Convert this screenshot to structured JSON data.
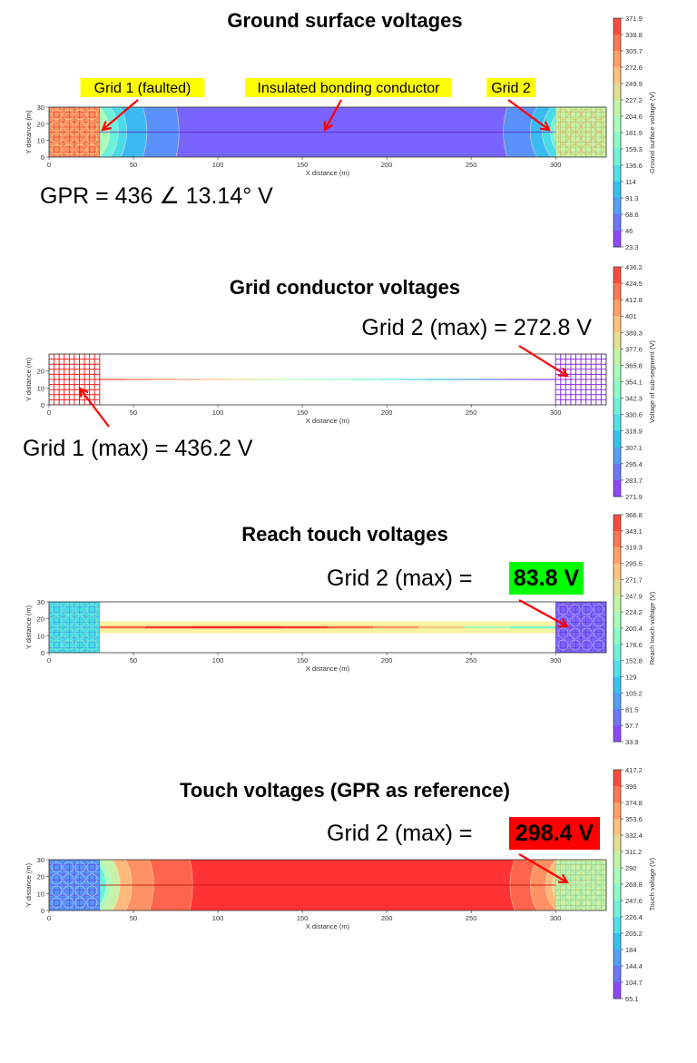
{
  "colors": {
    "arrow": "#ff0000",
    "highlight_yellow": "#ffff00",
    "highlight_green": "#00ff00",
    "highlight_red": "#ff0000"
  },
  "chart_data": [
    {
      "type": "heatmap",
      "title": "Ground surface voltages",
      "xlabel": "X distance (m)",
      "ylabel": "Y distance (m)",
      "xlim": [
        0,
        330
      ],
      "ylim": [
        0,
        30
      ],
      "xticks": [
        "0",
        "50",
        "100",
        "150",
        "200",
        "250",
        "300"
      ],
      "yticks": [
        "0",
        "10",
        "20",
        "30"
      ],
      "colormap": "rainbow",
      "colorbar_label": "Ground surface voltage (V)",
      "colorbar_ticks": [
        "371.9",
        "338.8",
        "305.7",
        "272.6",
        "249.9",
        "227.2",
        "204.6",
        "181.9",
        "159.3",
        "136.6",
        "114",
        "91.3",
        "68.6",
        "46",
        "23.3"
      ],
      "regions": {
        "grid1_level": 315,
        "grid2_level": 200,
        "conductor_level": 30
      },
      "annotations": {
        "grid1_label": "Grid 1 (faulted)",
        "conductor_label": "Insulated bonding conductor",
        "grid2_label": "Grid 2",
        "gpr": "GPR = 436 ∠ 13.14° V"
      }
    },
    {
      "type": "heatmap",
      "title": "Grid conductor voltages",
      "xlabel": "X distance (m)",
      "ylabel": "Y distance (m)",
      "xlim": [
        0,
        330
      ],
      "ylim": [
        0,
        30
      ],
      "xticks": [
        "0",
        "50",
        "100",
        "150",
        "200",
        "250",
        "300"
      ],
      "yticks": [
        "0",
        "10",
        "20"
      ],
      "colormap": "rainbow",
      "colorbar_label": "Voltage of sub-segment (V)",
      "colorbar_ticks": [
        "436.2",
        "424.5",
        "412.8",
        "401",
        "389.3",
        "377.6",
        "365.8",
        "354.1",
        "342.3",
        "330.6",
        "318.9",
        "307.1",
        "295.4",
        "283.7",
        "271.9"
      ],
      "annotations": {
        "grid2_max": "Grid 2 (max)  = 272.8 V",
        "grid1_max": "Grid 1 (max)  = 436.2 V"
      }
    },
    {
      "type": "heatmap",
      "title": "Reach touch voltages",
      "xlabel": "X distance (m)",
      "ylabel": "Y distance (m)",
      "xlim": [
        0,
        330
      ],
      "ylim": [
        0,
        30
      ],
      "xticks": [
        "0",
        "50",
        "100",
        "150",
        "200",
        "250",
        "300"
      ],
      "yticks": [
        "0",
        "10",
        "20",
        "30"
      ],
      "colormap": "rainbow",
      "colorbar_label": "Reach touch voltage (V)",
      "colorbar_ticks": [
        "366.8",
        "343.1",
        "319.3",
        "295.5",
        "271.7",
        "247.9",
        "224.2",
        "200.4",
        "176.6",
        "152.8",
        "129",
        "105.2",
        "81.5",
        "57.7",
        "33.9"
      ],
      "annotations": {
        "grid2_prefix": "Grid 2 (max)  = ",
        "grid2_value": "83.8 V"
      }
    },
    {
      "type": "heatmap",
      "title": "Touch voltages (GPR as reference)",
      "xlabel": "X distance (m)",
      "ylabel": "Y distance (m)",
      "xlim": [
        0,
        330
      ],
      "ylim": [
        0,
        30
      ],
      "xticks": [
        "0",
        "50",
        "100",
        "150",
        "200",
        "250",
        "300"
      ],
      "yticks": [
        "0",
        "10",
        "20",
        "30"
      ],
      "colormap": "rainbow",
      "colorbar_label": "Touch voltage (V)",
      "colorbar_ticks": [
        "417.2",
        "396",
        "374.8",
        "353.6",
        "332.4",
        "311.2",
        "290",
        "268.8",
        "247.6",
        "226.4",
        "205.2",
        "184",
        "144.4",
        "104.7",
        "65.1"
      ],
      "annotations": {
        "grid2_prefix": "Grid 2 (max)  = ",
        "grid2_value": "298.4 V"
      }
    }
  ]
}
